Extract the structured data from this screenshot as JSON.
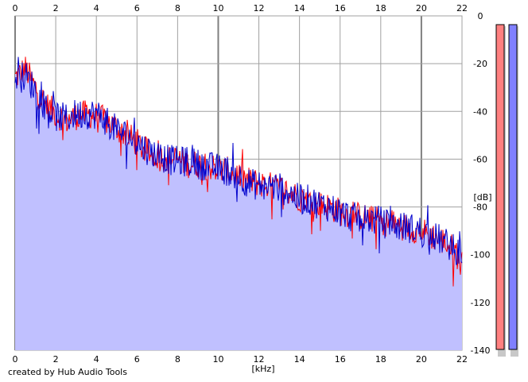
{
  "credit": "created by Hub Audio Tools",
  "chart_data": {
    "type": "area",
    "xlabel": "[kHz]",
    "ylabel": "[dB]",
    "xlim": [
      0,
      22
    ],
    "ylim": [
      -140,
      0
    ],
    "x_ticks": [
      "0",
      "2",
      "4",
      "6",
      "8",
      "10",
      "12",
      "14",
      "16",
      "18",
      "20",
      "22"
    ],
    "y_ticks": [
      "0",
      "-20",
      "-40",
      "-60",
      "-80",
      "-100",
      "-120",
      "-140"
    ],
    "grid": true,
    "x_tick_position": "top and bottom",
    "y_tick_position": "right",
    "colors": {
      "area_fill": "#c0c0ff",
      "red_line": "#ff0000",
      "blue_line": "#0000cc",
      "grid": "#a0a0a0",
      "major_grid": "#808080"
    },
    "series": [
      {
        "color": "red",
        "x": [
          0,
          0.25,
          0.5,
          1,
          1.5,
          2,
          2.5,
          3,
          3.5,
          4,
          4.5,
          5,
          5.5,
          6,
          6.5,
          7,
          7.5,
          8,
          8.5,
          9,
          9.5,
          10,
          10.5,
          11,
          11.5,
          12,
          12.5,
          13,
          13.5,
          14,
          14.5,
          15,
          15.5,
          16,
          16.5,
          17,
          17.5,
          18,
          18.5,
          19,
          19.5,
          20,
          20.5,
          21,
          21.5,
          22
        ],
        "y": [
          -26,
          -24,
          -22,
          -30,
          -37,
          -41,
          -44,
          -42,
          -41,
          -42,
          -44,
          -47,
          -50,
          -53,
          -57,
          -59,
          -60,
          -60,
          -62,
          -62,
          -63,
          -64,
          -65,
          -67,
          -69,
          -70,
          -71,
          -72,
          -74,
          -76,
          -77,
          -79,
          -80,
          -82,
          -83,
          -84,
          -85,
          -86,
          -87,
          -88,
          -89,
          -90,
          -92,
          -94,
          -97,
          -104
        ]
      },
      {
        "color": "blue",
        "x": [
          0,
          0.25,
          0.5,
          1,
          1.5,
          2,
          2.5,
          3,
          3.5,
          4,
          4.5,
          5,
          5.5,
          6,
          6.5,
          7,
          7.5,
          8,
          8.5,
          9,
          9.5,
          10,
          10.5,
          11,
          11.5,
          12,
          12.5,
          13,
          13.5,
          14,
          14.5,
          15,
          15.5,
          16,
          16.5,
          17,
          17.5,
          18,
          18.5,
          19,
          19.5,
          20,
          20.5,
          21,
          21.5,
          22
        ],
        "y": [
          -25,
          -26,
          -25,
          -31,
          -38,
          -42,
          -43,
          -41,
          -41,
          -41,
          -44,
          -48,
          -50,
          -53,
          -56,
          -58,
          -60,
          -61,
          -61,
          -62,
          -63,
          -64,
          -65,
          -67,
          -70,
          -71,
          -71,
          -72,
          -74,
          -77,
          -77,
          -79,
          -80,
          -82,
          -84,
          -85,
          -85,
          -86,
          -88,
          -88,
          -89,
          -90,
          -92,
          -94,
          -97,
          -100
        ]
      }
    ],
    "meters": [
      {
        "channel": "left",
        "color": "#ff8080"
      },
      {
        "channel": "right",
        "color": "#8080ff"
      }
    ]
  }
}
